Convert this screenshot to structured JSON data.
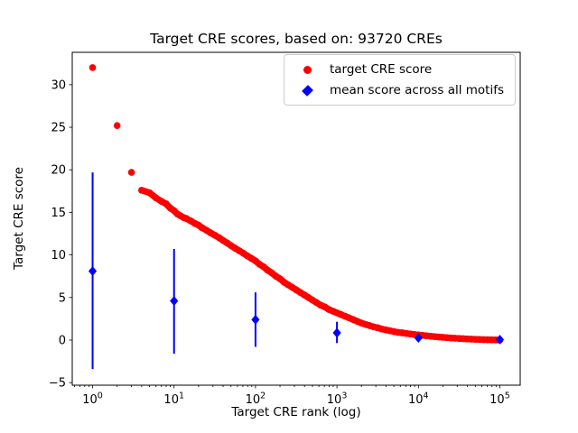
{
  "figure": {
    "title": "Target CRE scores, based on: 93720 CREs",
    "xlabel": "Target CRE rank (log)",
    "ylabel": "Target CRE score"
  },
  "legend": {
    "items": [
      {
        "label": "target CRE score",
        "marker": "circle",
        "color": "#ff0000"
      },
      {
        "label": "mean score across all motifs",
        "marker": "diamond",
        "color": "#0000ff"
      }
    ]
  },
  "colors": {
    "target_series": "#ff0000",
    "mean_series": "#0000ff",
    "axis": "#000000",
    "background": "#ffffff",
    "legend_border": "#cccccc"
  },
  "chart_data": {
    "type": "scatter",
    "title": "Target CRE scores, based on: 93720 CREs",
    "xlabel": "Target CRE rank (log)",
    "ylabel": "Target CRE score",
    "x_scale": "log",
    "x_tick_exponents": [
      0,
      1,
      2,
      3,
      4,
      5
    ],
    "y_ticks": [
      -5,
      0,
      5,
      10,
      15,
      20,
      25,
      30
    ],
    "xlim_log10": [
      -0.25,
      5.25
    ],
    "ylim": [
      -5.3,
      33.8
    ],
    "grid": false,
    "legend_position": "upper right",
    "series": [
      {
        "name": "target CRE score",
        "type": "scatter",
        "marker": "circle",
        "color": "#ff0000",
        "points": [
          [
            1,
            32.0
          ],
          [
            2,
            25.2
          ],
          [
            3,
            19.7
          ],
          [
            4,
            17.6
          ],
          [
            5,
            17.3
          ],
          [
            6,
            16.7
          ],
          [
            7,
            16.3
          ],
          [
            8,
            16.0
          ],
          [
            9,
            15.5
          ],
          [
            10,
            15.2
          ],
          [
            11,
            14.8
          ],
          [
            12,
            14.6
          ],
          [
            13,
            14.4
          ],
          [
            14,
            14.3
          ],
          [
            16,
            14.0
          ],
          [
            18,
            13.7
          ],
          [
            20,
            13.5
          ],
          [
            22,
            13.2
          ],
          [
            25,
            12.9
          ],
          [
            28,
            12.6
          ],
          [
            32,
            12.3
          ],
          [
            36,
            12.0
          ],
          [
            40,
            11.7
          ],
          [
            45,
            11.4
          ],
          [
            50,
            11.1
          ],
          [
            56,
            10.8
          ],
          [
            63,
            10.5
          ],
          [
            71,
            10.2
          ],
          [
            79,
            9.9
          ],
          [
            89,
            9.6
          ],
          [
            100,
            9.3
          ],
          [
            112,
            8.9
          ],
          [
            126,
            8.6
          ],
          [
            141,
            8.2
          ],
          [
            158,
            7.9
          ],
          [
            178,
            7.5
          ],
          [
            200,
            7.2
          ],
          [
            224,
            6.8
          ],
          [
            251,
            6.5
          ],
          [
            282,
            6.2
          ],
          [
            316,
            5.9
          ],
          [
            355,
            5.6
          ],
          [
            398,
            5.3
          ],
          [
            447,
            5.0
          ],
          [
            501,
            4.7
          ],
          [
            562,
            4.4
          ],
          [
            631,
            4.1
          ],
          [
            708,
            3.9
          ],
          [
            794,
            3.6
          ],
          [
            891,
            3.4
          ],
          [
            1000,
            3.2
          ],
          [
            1122,
            3.0
          ],
          [
            1259,
            2.8
          ],
          [
            1413,
            2.6
          ],
          [
            1585,
            2.4
          ],
          [
            1778,
            2.2
          ],
          [
            1995,
            2.0
          ],
          [
            2239,
            1.85
          ],
          [
            2512,
            1.7
          ],
          [
            2818,
            1.55
          ],
          [
            3162,
            1.45
          ],
          [
            3548,
            1.3
          ],
          [
            3981,
            1.2
          ],
          [
            4467,
            1.1
          ],
          [
            5012,
            1.0
          ],
          [
            5623,
            0.9
          ],
          [
            6310,
            0.85
          ],
          [
            7079,
            0.78
          ],
          [
            7943,
            0.72
          ],
          [
            8913,
            0.65
          ],
          [
            10000,
            0.6
          ],
          [
            11220,
            0.55
          ],
          [
            12589,
            0.5
          ],
          [
            14125,
            0.45
          ],
          [
            15849,
            0.4
          ],
          [
            17783,
            0.36
          ],
          [
            19953,
            0.32
          ],
          [
            22387,
            0.28
          ],
          [
            25119,
            0.25
          ],
          [
            28184,
            0.22
          ],
          [
            31623,
            0.19
          ],
          [
            35481,
            0.16
          ],
          [
            39811,
            0.13
          ],
          [
            44668,
            0.11
          ],
          [
            50119,
            0.09
          ],
          [
            56234,
            0.07
          ],
          [
            63096,
            0.05
          ],
          [
            70795,
            0.04
          ],
          [
            79433,
            0.03
          ],
          [
            89125,
            0.02
          ],
          [
            100000,
            0.0
          ]
        ]
      },
      {
        "name": "mean score across all motifs",
        "type": "errorbar",
        "marker": "diamond",
        "color": "#0000ff",
        "points": [
          {
            "x": 1,
            "mean": 8.1,
            "lo": -3.4,
            "hi": 19.7
          },
          {
            "x": 10,
            "mean": 4.6,
            "lo": -1.6,
            "hi": 10.7
          },
          {
            "x": 100,
            "mean": 2.4,
            "lo": -0.8,
            "hi": 5.6
          },
          {
            "x": 1000,
            "mean": 0.85,
            "lo": -0.35,
            "hi": 2.15
          },
          {
            "x": 10000,
            "mean": 0.25,
            "lo": -0.1,
            "hi": 0.8
          },
          {
            "x": 100000,
            "mean": 0.05,
            "lo": -0.05,
            "hi": 0.15
          }
        ]
      }
    ]
  }
}
